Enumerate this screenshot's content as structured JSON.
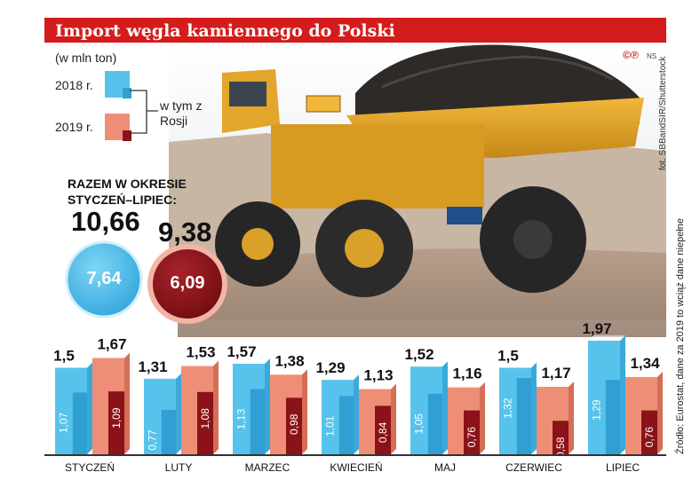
{
  "header": {
    "title": "Import węgla kamiennego do Polski"
  },
  "unit_label": "(w mln ton)",
  "legend": {
    "year_2018": "2018 r.",
    "year_2019": "2019 r.",
    "note": "w tym z Rosji"
  },
  "logo": {
    "mark": "©℗",
    "initials": "NS"
  },
  "photo_credit": "fot. SBBandSIR/Shutterstock",
  "source_note": "Źródło: Eurostat, dane za 2019 to wciąż dane niepełne",
  "totals": {
    "heading": "RAZEM W OKRESIE STYCZEŃ–LIPIEC:",
    "total_2018": "10,66",
    "total_2019": "9,38",
    "russia_2018": "7,64",
    "russia_2019": "6,09"
  },
  "colors": {
    "bar_2018": "#57c3ec",
    "bar_2018_russia": "#2f9fd4",
    "bar_2019": "#ef8e76",
    "bar_2019_russia": "#8b1218",
    "title_bg": "#d41c1c"
  },
  "chart_data": {
    "type": "bar",
    "title": "Import węgla kamiennego do Polski",
    "unit": "mln ton",
    "categories": [
      "STYCZEŃ",
      "LUTY",
      "MARZEC",
      "KWIECIEŃ",
      "MAJ",
      "CZERWIEC",
      "LIPIEC"
    ],
    "series": [
      {
        "name": "2018 r.",
        "values": [
          1.5,
          1.31,
          1.57,
          1.29,
          1.52,
          1.5,
          1.97
        ],
        "labels": [
          "1,5",
          "1,31",
          "1,57",
          "1,29",
          "1,52",
          "1,5",
          "1,97"
        ]
      },
      {
        "name": "2019 r.",
        "values": [
          1.67,
          1.53,
          1.38,
          1.13,
          1.16,
          1.17,
          1.34
        ],
        "labels": [
          "1,67",
          "1,53",
          "1,38",
          "1,13",
          "1,16",
          "1,17",
          "1,34"
        ]
      }
    ],
    "russia": [
      {
        "name": "2018 r.",
        "values": [
          1.07,
          0.77,
          1.13,
          1.01,
          1.05,
          1.32,
          1.29
        ],
        "labels": [
          "1,07",
          "0,77",
          "1,13",
          "1,01",
          "1,05",
          "1,32",
          "1,29"
        ]
      },
      {
        "name": "2019 r.",
        "values": [
          1.09,
          1.08,
          0.98,
          0.84,
          0.76,
          0.58,
          0.76
        ],
        "labels": [
          "1,09",
          "1,08",
          "0,98",
          "0,84",
          "0,76",
          "0,58",
          "0,76"
        ]
      }
    ],
    "ylim": [
      0,
      2.1
    ],
    "grid": false,
    "legend": "top-left"
  }
}
